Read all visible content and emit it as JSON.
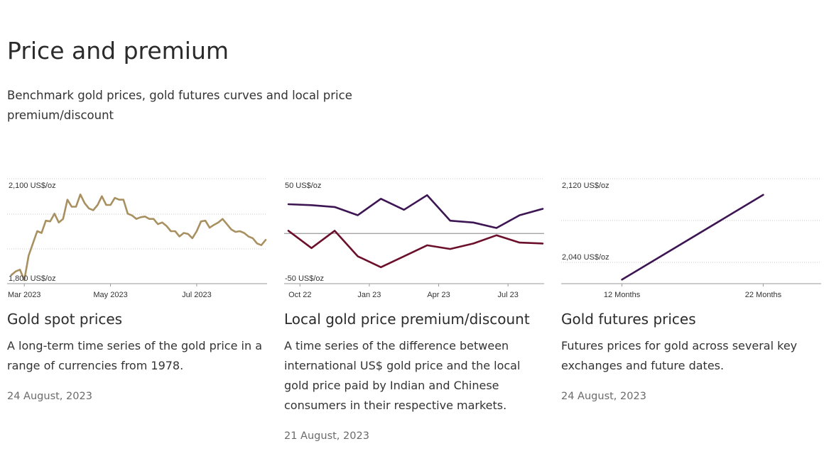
{
  "header": {
    "title": "Price and premium",
    "subtitle": "Benchmark gold prices, gold futures curves and local price premium/discount"
  },
  "colors": {
    "gold": "#a89060",
    "purple": "#3d1552",
    "maroon": "#6b0f2b",
    "grid": "#c8c8c8",
    "zero": "#9a9a9a"
  },
  "cards": [
    {
      "title": "Gold spot prices",
      "description": "A long-term time series of the gold price in a range of currencies from 1978.",
      "date": "24 August, 2023"
    },
    {
      "title": "Local gold price premium/discount",
      "description": "A time series of the difference between international US$ gold price and the local gold price paid by Indian and Chinese consumers in their respective markets.",
      "date": "21 August, 2023"
    },
    {
      "title": "Gold futures prices",
      "description": "Futures prices for gold across several key exchanges and future dates.",
      "date": "24 August, 2023"
    }
  ],
  "chart_data": [
    {
      "type": "line",
      "y_unit_label_top": "2,100 US$/oz",
      "y_unit_label_bottom": "1,800 US$/oz",
      "ylim": [
        1800,
        2100
      ],
      "x_tick_labels": [
        "Mar 2023",
        "May 2023",
        "Jul 2023"
      ],
      "x_tick_positions": [
        3,
        23,
        43
      ],
      "series": [
        {
          "color": "gold",
          "x": [
            0,
            1,
            2,
            3,
            4,
            5,
            6,
            7,
            8,
            9,
            10,
            11,
            12,
            13,
            14,
            15,
            16,
            17,
            18,
            19,
            20,
            21,
            22,
            23,
            24,
            25,
            26,
            27,
            28,
            29,
            30,
            31,
            32,
            33,
            34,
            35,
            36,
            37,
            38,
            39,
            40,
            41,
            42,
            43,
            44,
            45,
            46,
            47,
            48,
            49,
            50,
            51,
            52,
            53,
            54,
            55,
            56,
            57,
            58,
            59
          ],
          "values": [
            1825,
            1835,
            1840,
            1810,
            1880,
            1915,
            1950,
            1945,
            1980,
            1978,
            2000,
            1975,
            1985,
            2040,
            2020,
            2020,
            2055,
            2030,
            2015,
            2010,
            2025,
            2050,
            2025,
            2025,
            2045,
            2040,
            2040,
            2000,
            1995,
            1985,
            1990,
            1992,
            1985,
            1985,
            1970,
            1975,
            1965,
            1950,
            1950,
            1935,
            1945,
            1942,
            1930,
            1950,
            1978,
            1980,
            1960,
            1968,
            1975,
            1985,
            1970,
            1955,
            1948,
            1950,
            1945,
            1935,
            1930,
            1915,
            1910,
            1925
          ]
        }
      ]
    },
    {
      "type": "line",
      "y_unit_label_top": "50 US$/oz",
      "y_unit_label_bottom": "-50 US$/oz",
      "ylim": [
        -50,
        50
      ],
      "x_tick_labels": [
        "Oct 22",
        "Jan 23",
        "Apr 23",
        "Jul 23"
      ],
      "x_tick_positions": [
        0.5,
        3.5,
        6.5,
        9.5
      ],
      "series": [
        {
          "color": "purple",
          "x": [
            0,
            1,
            2,
            3,
            4,
            5,
            6,
            7,
            8,
            9,
            10,
            11
          ],
          "values": [
            32,
            31,
            29,
            20,
            38,
            26,
            42,
            14,
            12,
            6,
            20,
            27
          ]
        },
        {
          "color": "maroon",
          "x": [
            0,
            1,
            2,
            3,
            4,
            5,
            6,
            7,
            8,
            9,
            10,
            11
          ],
          "values": [
            3,
            -16,
            3,
            -25,
            -37,
            -25,
            -13,
            -17,
            -11,
            -2,
            -10,
            -11
          ]
        }
      ]
    },
    {
      "type": "line",
      "y_unit_label_top": "2,120 US$/oz",
      "y_unit_label_bottom": "2,040 US$/oz",
      "ylim": [
        2000,
        2130
      ],
      "x_tick_labels": [
        "12 Months",
        "22 Months"
      ],
      "x_tick_positions": [
        12,
        22
      ],
      "series": [
        {
          "color": "purple",
          "x": [
            12,
            22
          ],
          "values": [
            2005,
            2110
          ]
        }
      ]
    }
  ]
}
